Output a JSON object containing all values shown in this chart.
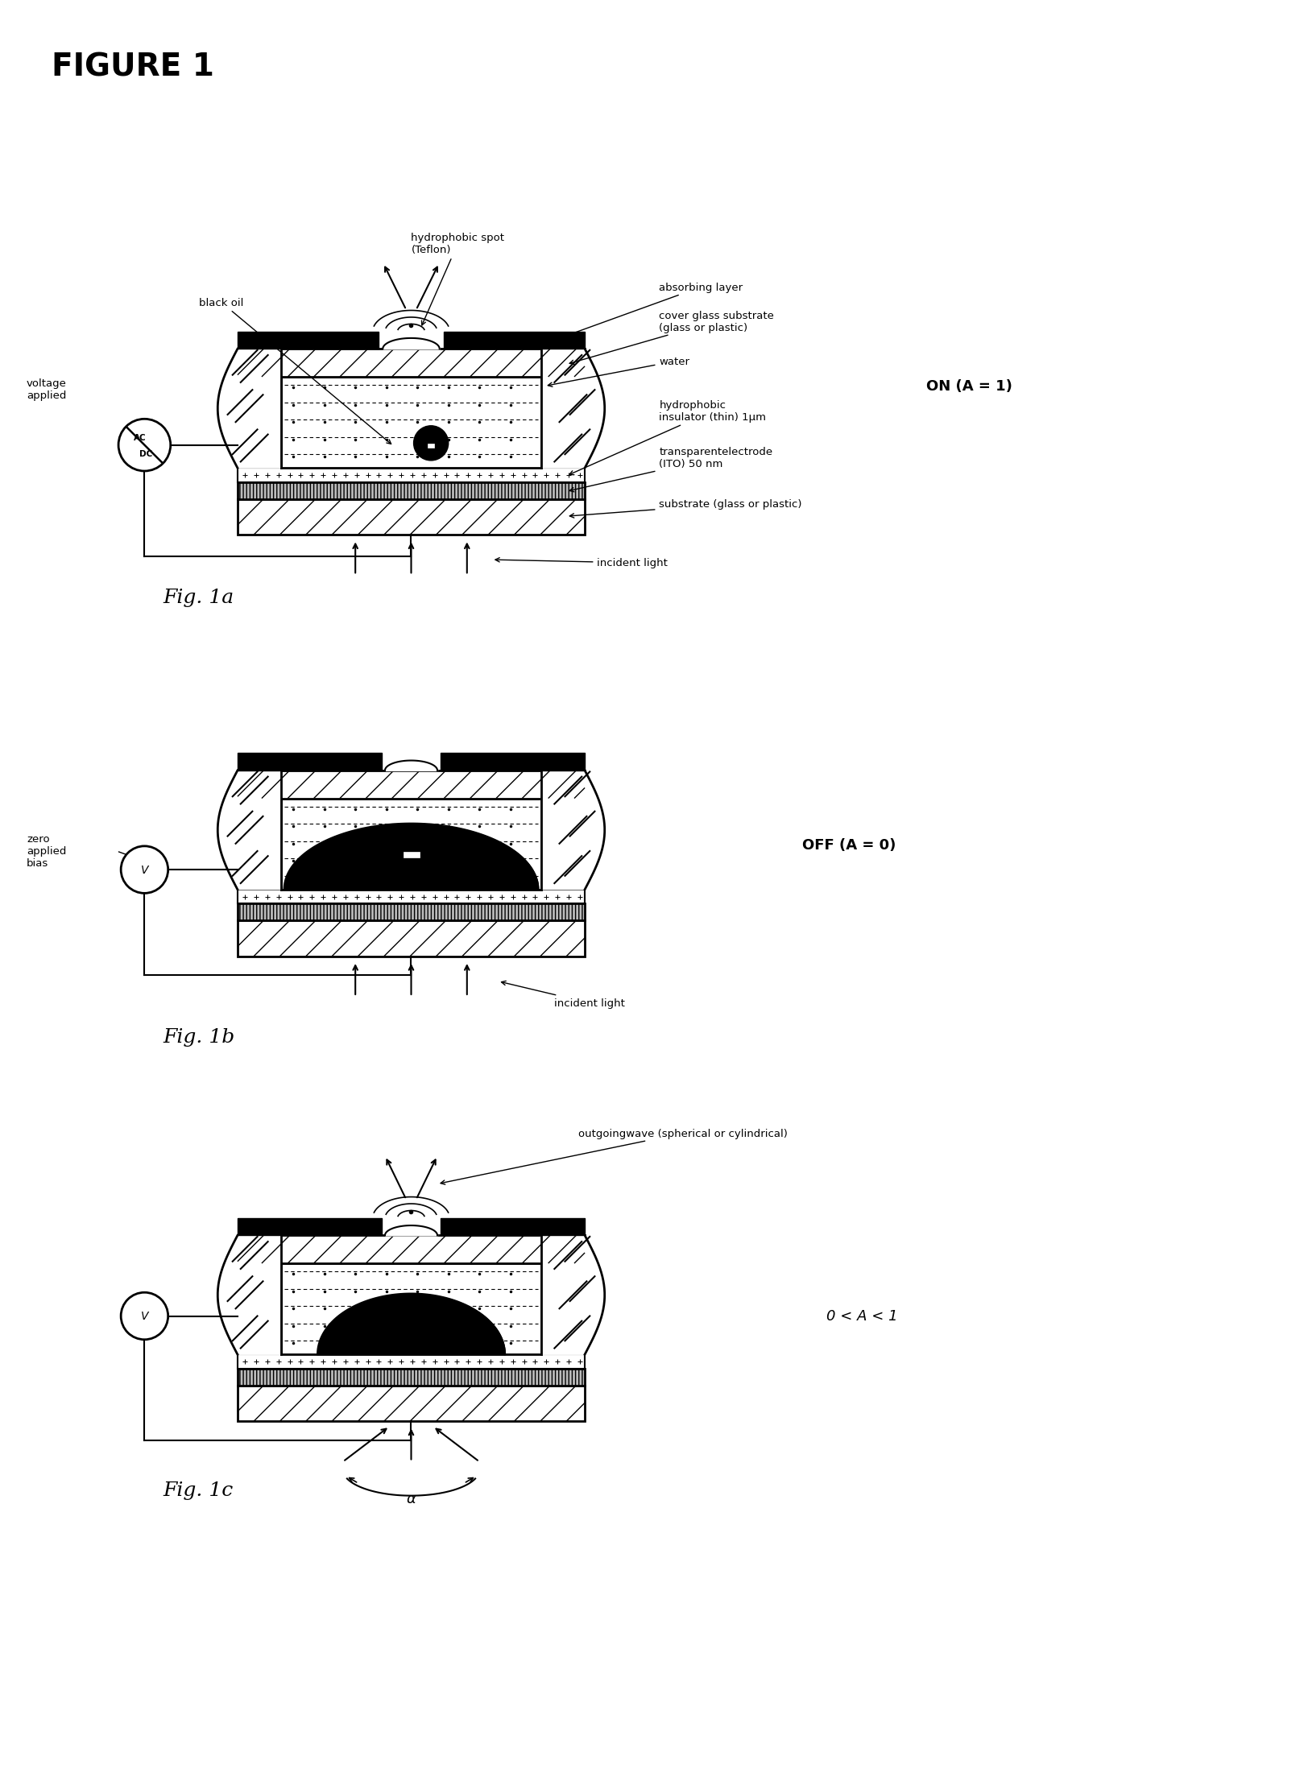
{
  "title": "FIGURE 1",
  "fig1a_label": "Fig. 1a",
  "fig1b_label": "Fig. 1b",
  "fig1c_label": "Fig. 1c",
  "on_label": "ON (A = 1)",
  "off_label": "OFF (A = 0)",
  "partial_label": "0 < A < 1",
  "ann1a_black_oil": "black oil",
  "ann1a_hydrophobic_spot": "hydrophobic spot\n(Teflon)",
  "ann1a_absorbing_layer": "absorbing layer",
  "ann1a_cover_glass": "cover glass substrate\n(glass or plastic)",
  "ann1a_water": "water",
  "ann1a_hydrophobic_ins": "hydrophobic\ninsulator (thin) 1μm",
  "ann1a_transparent_elec": "transparentelectrode\n(ITO) 50 nm",
  "ann1a_substrate": "substrate (glass or plastic)",
  "ann1a_incident_light": "incident light",
  "ann1a_voltage_applied": "voltage\napplied",
  "ann1b_zero_bias": "zero\napplied\nbias",
  "ann1b_incident_light": "incident light",
  "ann1c_outgoing_wave": "outgoingwave (spherical or cylindrical)",
  "ann1c_alpha": "α",
  "bg_color": "#ffffff"
}
